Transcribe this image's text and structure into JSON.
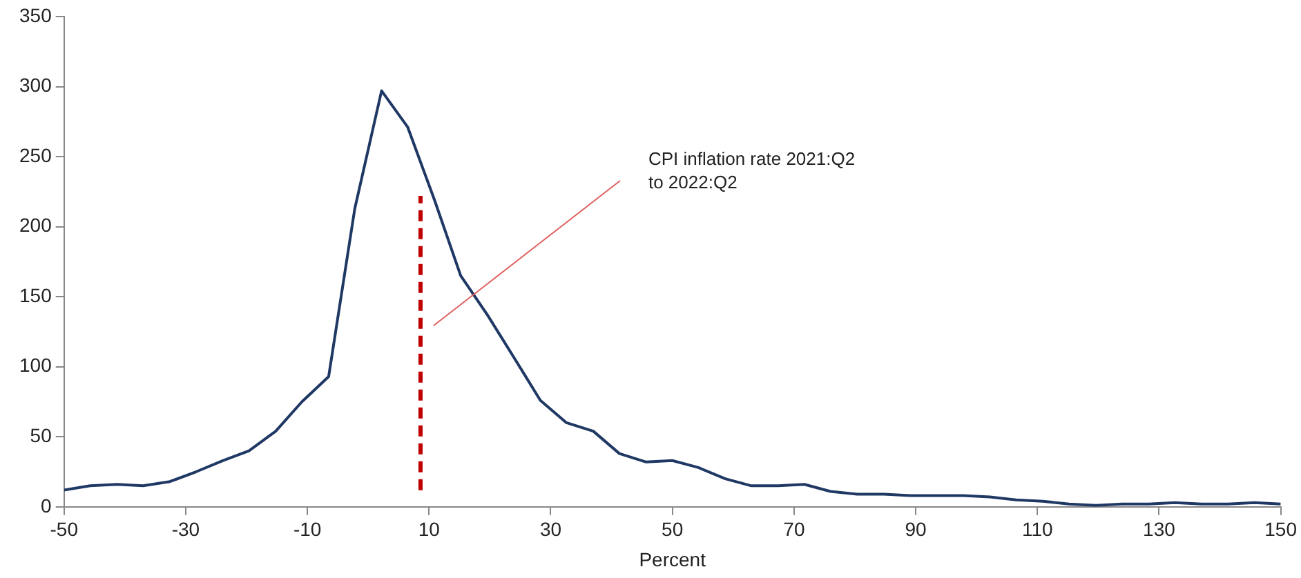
{
  "chart_data": {
    "type": "line",
    "xlabel": "Percent",
    "x": [
      -50,
      -45.7,
      -41.3,
      -37,
      -32.6,
      -28.3,
      -23.9,
      -19.6,
      -15.2,
      -10.9,
      -6.5,
      -2.2,
      2.2,
      6.5,
      10.9,
      15.2,
      19.6,
      23.9,
      28.3,
      32.6,
      37,
      41.3,
      45.7,
      50,
      54.3,
      58.7,
      63,
      67.4,
      71.7,
      76,
      80.4,
      84.8,
      89.1,
      93.5,
      97.8,
      102.2,
      106.5,
      110.9,
      115.2,
      119.6,
      123.9,
      128.3,
      132.6,
      137,
      141.3,
      145.7,
      150
    ],
    "series": [
      {
        "color": "#1f3864",
        "values": [
          12,
          15,
          16,
          15,
          18,
          25,
          33,
          40,
          54,
          75,
          93,
          213,
          297,
          271,
          219,
          165,
          137,
          107,
          76,
          60,
          54,
          38,
          32,
          33,
          28,
          20,
          15,
          15,
          16,
          11,
          9,
          9,
          8,
          8,
          8,
          7,
          5,
          4,
          2,
          1,
          2,
          2,
          3,
          2,
          2,
          3,
          2
        ]
      }
    ],
    "xlim": [
      -50,
      150
    ],
    "xticks": [
      -50,
      -30,
      -10,
      10,
      30,
      50,
      70,
      90,
      110,
      130,
      150
    ],
    "ylim": [
      0,
      350
    ],
    "yticks": [
      0,
      50,
      100,
      150,
      200,
      250,
      300,
      350
    ],
    "grid": false,
    "legend": false,
    "marker": "none",
    "line_style": "solid",
    "annotations": [
      "CPI inflation rate 2021:Q2 to 2022:Q2"
    ],
    "ref_lines": [
      {
        "axis": "x",
        "value": 8.6,
        "color": "#c00000",
        "line_style": "dashed"
      }
    ]
  }
}
